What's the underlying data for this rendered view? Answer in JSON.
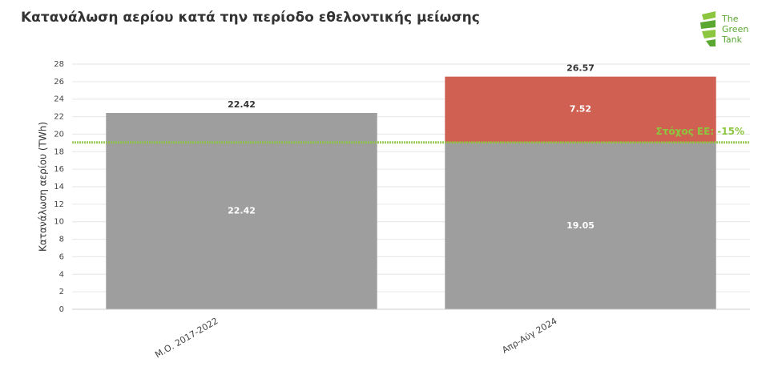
{
  "chart_data": {
    "type": "stacked_bar",
    "title": "Κατανάλωση αερίου κατά την περίοδο εθελοντικής μείωσης",
    "y_label": "Κατανάλωση αερίου (TWh)",
    "categories": [
      "Μ.Ο. 2017-2022",
      "Απρ-Αύγ 2024"
    ],
    "series": [
      {
        "color": "#9e9e9e",
        "values": [
          22.42,
          19.05
        ]
      },
      {
        "color": "#d06052",
        "values": [
          null,
          7.52
        ]
      }
    ],
    "totals": [
      22.42,
      26.57
    ],
    "target_line": {
      "value": 19.06,
      "label": "Στόχος ΕΕ: -15%",
      "color": "#8cc63f"
    },
    "ylim": [
      0,
      28
    ],
    "yticks": [
      0,
      2,
      4,
      6,
      8,
      10,
      12,
      14,
      16,
      18,
      20,
      22,
      24,
      26,
      28
    ],
    "grid": true
  },
  "logo": {
    "lines": [
      "The",
      "Green",
      "Tank"
    ]
  }
}
